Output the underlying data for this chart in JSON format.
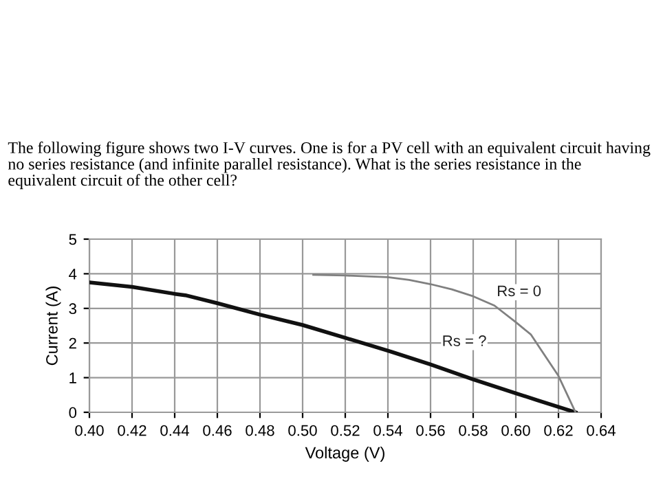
{
  "chart_data": {
    "type": "line",
    "title": "The following figure shows two I-V curves. One is for a PV cell with an equivalent circuit having no series resistance (and infinite parallel resistance). What is the series resistance in the equivalent circuit of the other cell?",
    "xlabel": "Voltage (V)",
    "ylabel": "Current (A)",
    "series": [
      {
        "name": "Rs = ?",
        "color": "#111111",
        "x": [
          0.4,
          0.42,
          0.44,
          0.445,
          0.46,
          0.48,
          0.5,
          0.52,
          0.54,
          0.56,
          0.58,
          0.6,
          0.61,
          0.628
        ],
        "values": [
          3.75,
          3.62,
          3.42,
          3.38,
          3.15,
          2.82,
          2.52,
          2.15,
          1.78,
          1.38,
          0.95,
          0.55,
          0.35,
          0
        ]
      },
      {
        "name": "Rs = 0",
        "color": "#808080",
        "x": [
          0.505,
          0.52,
          0.54,
          0.55,
          0.56,
          0.57,
          0.58,
          0.59,
          0.6,
          0.607,
          0.62,
          0.628
        ],
        "values": [
          3.97,
          3.95,
          3.9,
          3.82,
          3.7,
          3.55,
          3.35,
          3.08,
          2.6,
          2.25,
          1.05,
          0
        ]
      }
    ],
    "xlim": [
      0.4,
      0.64
    ],
    "xticks": [
      {
        "value": 0.4,
        "label": "0.40"
      },
      0.42,
      0.44,
      0.46,
      0.48,
      {
        "value": 0.5,
        "label": "0.50"
      },
      0.52,
      0.54,
      0.56,
      0.58,
      {
        "value": 0.6,
        "label": "0.60"
      },
      0.62,
      0.64
    ],
    "ylim": [
      0,
      5
    ],
    "yticks": [
      0,
      1,
      2,
      3,
      4,
      5
    ],
    "grid": true,
    "marker": "none",
    "line_style": "solid"
  }
}
